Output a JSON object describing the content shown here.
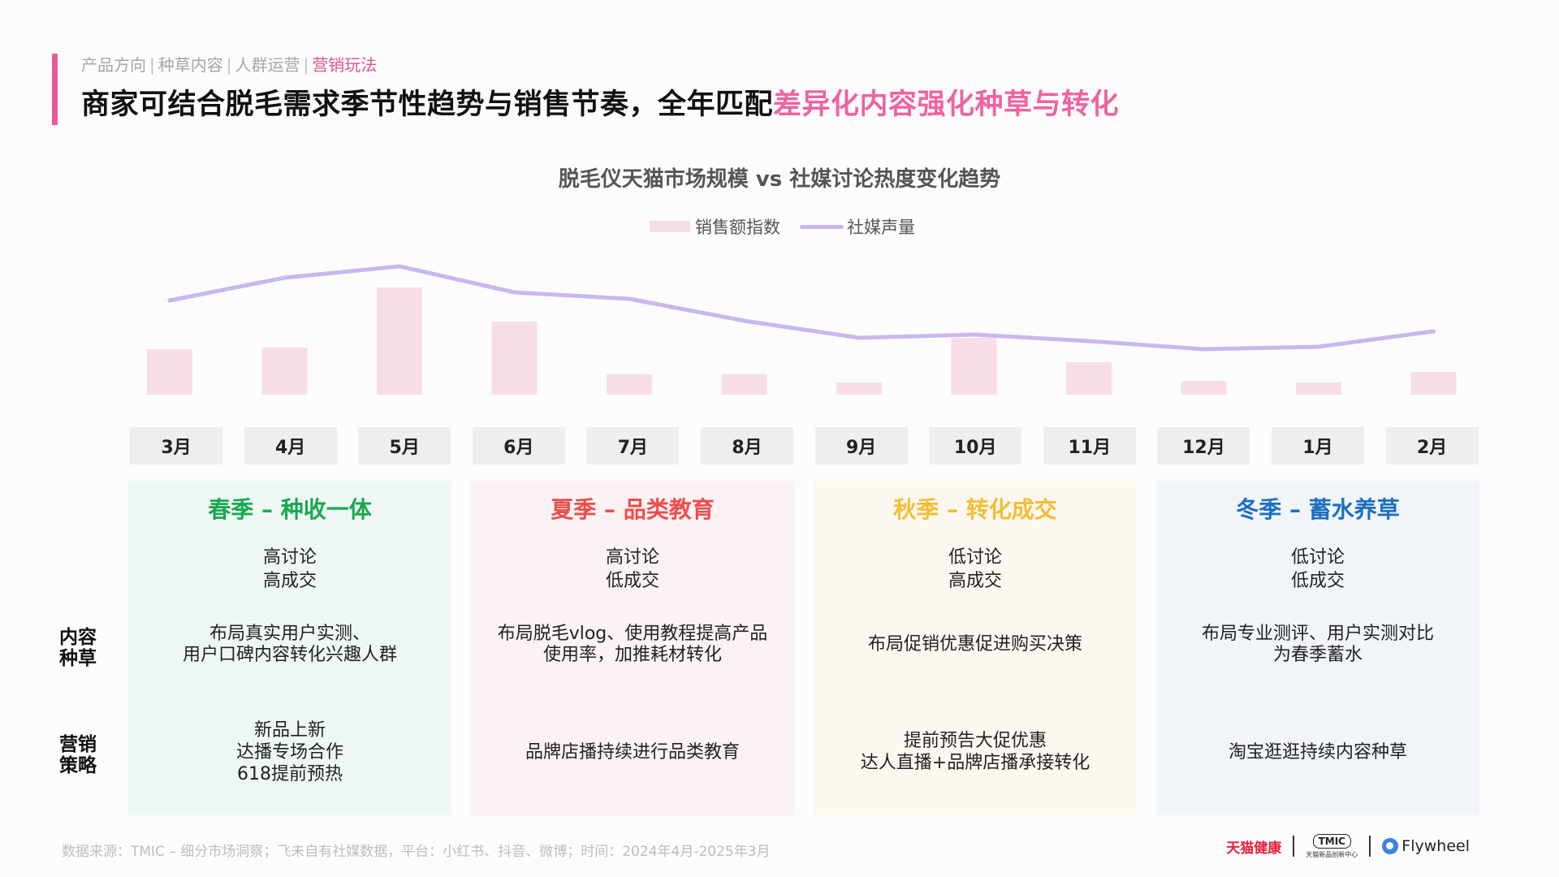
{
  "header": {
    "breadcrumb": [
      "产品方向",
      "种草内容",
      "人群运营",
      "营销玩法"
    ],
    "active_index": 3,
    "headline_main": "商家可结合脱毛需求季节性趋势与销售节奏，全年匹配",
    "headline_highlight": "差异化内容强化种草与转化"
  },
  "colors": {
    "accent": "#ea5a9a",
    "bar": "#f8dde7",
    "line": "#c8b8ef"
  },
  "chart_data": {
    "type": "bar+line",
    "title": "脱毛仪天猫市场规模 vs 社媒讨论热度变化趋势",
    "categories": [
      "3月",
      "4月",
      "5月",
      "6月",
      "7月",
      "8月",
      "9月",
      "10月",
      "11月",
      "12月",
      "1月",
      "2月"
    ],
    "series": [
      {
        "name": "销售额指数",
        "type": "bar",
        "values": [
          56,
          58,
          132,
          90,
          25,
          25,
          15,
          70,
          40,
          17,
          15,
          28
        ]
      },
      {
        "name": "社媒声量",
        "type": "line",
        "values": [
          116,
          144,
          158,
          126,
          118,
          91,
          70,
          74,
          66,
          56,
          59,
          78
        ]
      }
    ],
    "legend_position": "top-center",
    "grid": false
  },
  "seasons": [
    {
      "title": "春季 – 种收一体",
      "color": "#1aa84f",
      "bg": "#eef7f3",
      "state": [
        "高讨论",
        "高成交"
      ],
      "content": [
        "布局真实用户实测、",
        "用户口碑内容转化兴趣人群"
      ],
      "marketing": [
        "新品上新",
        "达播专场合作",
        "618提前预热"
      ]
    },
    {
      "title": "夏季 – 品类教育",
      "color": "#ee4d4d",
      "bg": "#fbf2f3",
      "state": [
        "高讨论",
        "低成交"
      ],
      "content": [
        "布局脱毛vlog、使用教程提高产品",
        "使用率，加推耗材转化"
      ],
      "marketing": [
        "品牌店播持续进行品类教育"
      ]
    },
    {
      "title": "秋季 – 转化成交",
      "color": "#f6bd33",
      "bg": "#fcf8f1",
      "state": [
        "低讨论",
        "高成交"
      ],
      "content": [
        "布局促销优惠促进购买决策"
      ],
      "marketing": [
        "提前预告大促优惠",
        "达人直播+品牌店播承接转化"
      ]
    },
    {
      "title": "冬季 – 蓄水养草",
      "color": "#1d6fbf",
      "bg": "#f1f4f9",
      "state": [
        "低讨论",
        "低成交"
      ],
      "content": [
        "布局专业测评、用户实测对比",
        "为春季蓄水"
      ],
      "marketing": [
        "淘宝逛逛持续内容种草"
      ]
    }
  ],
  "row_labels": {
    "content": [
      "内容",
      "种草"
    ],
    "marketing": [
      "营销",
      "策略"
    ]
  },
  "footer": {
    "source": "数据来源：TMIC – 细分市场洞察；飞未自有社媒数据，平台：小红书、抖音、微博；时间：2024年4月-2025年3月",
    "logo_tmall": "天猫健康",
    "logo_tmic": "TMIC",
    "logo_tmic_sub": "天猫新品创新中心",
    "logo_flywheel": "Flywheel"
  }
}
